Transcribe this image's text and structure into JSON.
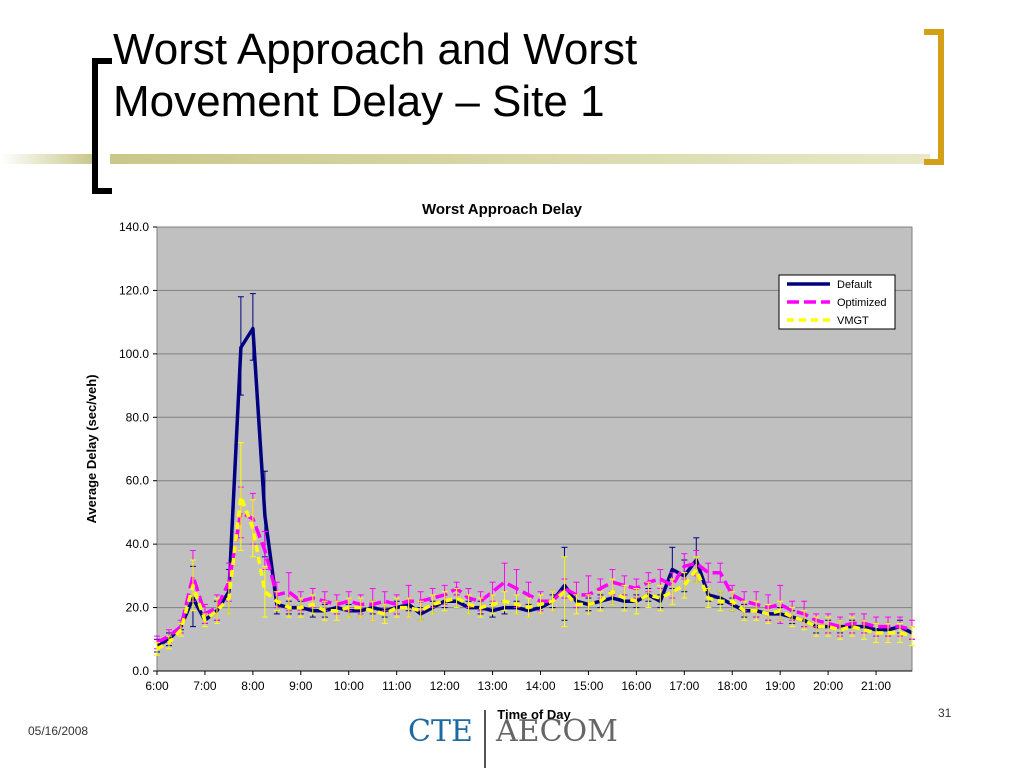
{
  "slide": {
    "title_line1": "Worst Approach and Worst",
    "title_line2": "Movement Delay – Site 1",
    "date": "05/16/2008",
    "page_number": "31",
    "logo_left": "CTE",
    "logo_right": "AECOM"
  },
  "chart_data": {
    "type": "line",
    "title": "Worst Approach Delay",
    "xlabel": "Time of Day",
    "ylabel": "Average Delay (sec/veh)",
    "ylim": [
      0,
      140
    ],
    "yticks": [
      "0.0",
      "20.0",
      "40.0",
      "60.0",
      "80.0",
      "100.0",
      "120.0",
      "140.0"
    ],
    "xlim": [
      "6:00",
      "21:45"
    ],
    "xticks": [
      "6:00",
      "7:00",
      "8:00",
      "9:00",
      "10:00",
      "11:00",
      "12:00",
      "13:00",
      "14:00",
      "15:00",
      "16:00",
      "17:00",
      "18:00",
      "19:00",
      "20:00",
      "21:00"
    ],
    "x": [
      "6:00",
      "6:15",
      "6:30",
      "6:45",
      "7:00",
      "7:15",
      "7:30",
      "7:45",
      "8:00",
      "8:15",
      "8:30",
      "8:45",
      "9:00",
      "9:15",
      "9:30",
      "9:45",
      "10:00",
      "10:15",
      "10:30",
      "10:45",
      "11:00",
      "11:15",
      "11:30",
      "11:45",
      "12:00",
      "12:15",
      "12:30",
      "12:45",
      "13:00",
      "13:15",
      "13:30",
      "13:45",
      "14:00",
      "14:15",
      "14:30",
      "14:45",
      "15:00",
      "15:15",
      "15:30",
      "15:45",
      "16:00",
      "16:15",
      "16:30",
      "16:45",
      "17:00",
      "17:15",
      "17:30",
      "17:45",
      "18:00",
      "18:15",
      "18:30",
      "18:45",
      "19:00",
      "19:15",
      "19:30",
      "19:45",
      "20:00",
      "20:15",
      "20:30",
      "20:45",
      "21:00",
      "21:15",
      "21:30",
      "21:45"
    ],
    "grid": true,
    "legend_position": "top-right",
    "plot_background": "#c0c0c0",
    "series": [
      {
        "name": "Default",
        "color": "#000080",
        "style": "solid",
        "values": [
          8,
          10,
          14,
          23,
          16,
          19,
          25,
          102,
          108,
          49,
          21,
          20,
          20,
          19,
          19,
          20,
          19,
          19,
          20,
          19,
          20,
          21,
          18,
          20,
          22,
          22,
          20,
          20,
          19,
          20,
          20,
          19,
          20,
          22,
          27,
          22,
          21,
          22,
          23,
          22,
          22,
          24,
          22,
          32,
          30,
          35,
          24,
          23,
          21,
          19,
          19,
          18,
          18,
          17,
          16,
          14,
          14,
          14,
          14,
          14,
          13,
          13,
          14,
          12
        ],
        "error_high": [
          10,
          12,
          15,
          33,
          17,
          22,
          32,
          118,
          119,
          63,
          24,
          22,
          22,
          21,
          21,
          22,
          21,
          21,
          22,
          21,
          22,
          23,
          20,
          22,
          24,
          24,
          22,
          22,
          21,
          22,
          22,
          21,
          22,
          24,
          39,
          24,
          23,
          24,
          25,
          24,
          24,
          26,
          24,
          39,
          35,
          42,
          26,
          25,
          23,
          21,
          21,
          20,
          20,
          19,
          18,
          16,
          16,
          16,
          16,
          16,
          15,
          15,
          16,
          14
        ],
        "error_low": [
          6,
          8,
          13,
          14,
          15,
          16,
          18,
          87,
          98,
          36,
          18,
          18,
          18,
          17,
          17,
          18,
          17,
          17,
          18,
          17,
          18,
          19,
          16,
          18,
          20,
          20,
          18,
          18,
          17,
          18,
          18,
          17,
          18,
          20,
          16,
          20,
          19,
          20,
          21,
          20,
          20,
          22,
          20,
          26,
          25,
          28,
          22,
          21,
          19,
          17,
          17,
          16,
          16,
          15,
          14,
          12,
          12,
          12,
          12,
          12,
          11,
          11,
          12,
          10
        ]
      },
      {
        "name": "Optimized",
        "color": "#ff00ff",
        "style": "dashed",
        "values": [
          9,
          11,
          14,
          30,
          18,
          20,
          28,
          50,
          48,
          38,
          24,
          25,
          22,
          23,
          22,
          21,
          22,
          21,
          21,
          22,
          21,
          22,
          22,
          23,
          24,
          26,
          23,
          22,
          25,
          28,
          26,
          24,
          22,
          22,
          26,
          24,
          24,
          26,
          28,
          27,
          26,
          28,
          29,
          27,
          33,
          34,
          31,
          31,
          24,
          22,
          21,
          20,
          21,
          19,
          18,
          16,
          15,
          14,
          15,
          15,
          14,
          14,
          14,
          13
        ],
        "error_high": [
          11,
          13,
          16,
          38,
          21,
          24,
          34,
          58,
          56,
          44,
          28,
          31,
          25,
          26,
          25,
          24,
          25,
          24,
          26,
          25,
          24,
          27,
          25,
          26,
          27,
          28,
          26,
          25,
          28,
          34,
          32,
          28,
          25,
          25,
          29,
          28,
          30,
          29,
          32,
          30,
          29,
          31,
          32,
          31,
          37,
          38,
          34,
          34,
          27,
          25,
          25,
          24,
          27,
          22,
          22,
          18,
          18,
          17,
          18,
          18,
          17,
          17,
          17,
          16
        ],
        "error_low": [
          7,
          9,
          12,
          22,
          15,
          16,
          22,
          42,
          40,
          32,
          20,
          19,
          19,
          20,
          19,
          18,
          19,
          18,
          16,
          19,
          18,
          17,
          19,
          20,
          21,
          24,
          20,
          19,
          22,
          22,
          20,
          20,
          19,
          19,
          23,
          20,
          18,
          23,
          24,
          24,
          23,
          25,
          26,
          23,
          29,
          30,
          28,
          28,
          21,
          19,
          17,
          16,
          15,
          16,
          14,
          14,
          12,
          11,
          12,
          12,
          11,
          11,
          11,
          10
        ]
      },
      {
        "name": "VMGT",
        "color": "#ffff00",
        "style": "dashed",
        "values": [
          7,
          9,
          13,
          27,
          16,
          19,
          23,
          55,
          45,
          25,
          22,
          20,
          20,
          21,
          19,
          19,
          20,
          20,
          19,
          18,
          20,
          20,
          19,
          21,
          22,
          23,
          21,
          20,
          21,
          22,
          21,
          20,
          21,
          22,
          25,
          21,
          21,
          22,
          25,
          23,
          22,
          24,
          23,
          25,
          27,
          32,
          23,
          22,
          22,
          19,
          19,
          18,
          19,
          17,
          16,
          14,
          14,
          13,
          14,
          13,
          12,
          12,
          12,
          11
        ],
        "error_high": [
          9,
          11,
          15,
          35,
          18,
          23,
          28,
          72,
          54,
          33,
          25,
          23,
          23,
          24,
          22,
          22,
          23,
          23,
          22,
          21,
          23,
          23,
          22,
          24,
          25,
          26,
          24,
          23,
          24,
          25,
          24,
          23,
          24,
          25,
          36,
          24,
          24,
          25,
          29,
          27,
          26,
          28,
          27,
          29,
          31,
          36,
          26,
          25,
          25,
          22,
          22,
          21,
          22,
          20,
          19,
          17,
          17,
          16,
          17,
          16,
          15,
          15,
          15,
          14
        ],
        "error_low": [
          5,
          7,
          11,
          19,
          14,
          15,
          18,
          38,
          36,
          17,
          19,
          17,
          17,
          18,
          16,
          16,
          17,
          17,
          16,
          15,
          17,
          17,
          16,
          18,
          19,
          20,
          18,
          17,
          18,
          19,
          18,
          17,
          18,
          19,
          14,
          18,
          18,
          19,
          21,
          19,
          18,
          20,
          19,
          21,
          23,
          28,
          20,
          19,
          19,
          16,
          16,
          15,
          16,
          14,
          13,
          11,
          11,
          10,
          11,
          10,
          9,
          9,
          9,
          8
        ]
      }
    ]
  }
}
